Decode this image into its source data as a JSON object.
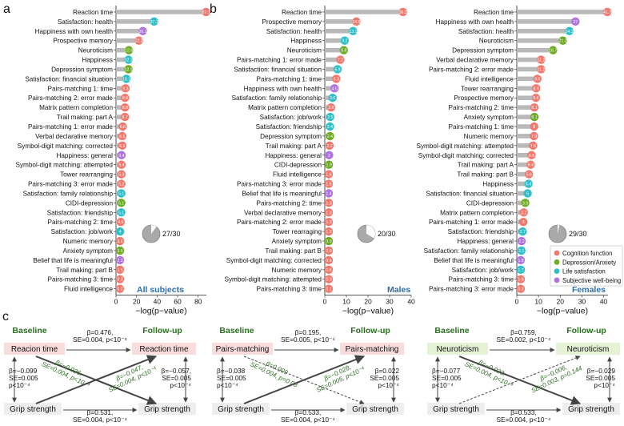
{
  "categories": [
    "Cognition function",
    "Depression/Anxiety",
    "Life satisfaction",
    "Subjective well-being"
  ],
  "colors": {
    "Cognition function": "#f0786c",
    "Depression/Anxiety": "#6cab22",
    "Life satisfaction": "#2ebfc9",
    "Subjective well-being": "#b072e0",
    "bar": "#b9b9b9",
    "title": "#2e6fae",
    "baseline_label": "#2a6e1f",
    "box_pink": "#fbdcdc",
    "box_green": "#e6f2d6",
    "box_gray": "#eeeeee",
    "crosslag": "#2a6e1f"
  },
  "chart_data": [
    {
      "type": "bar",
      "panel_label": "a",
      "title": "All subjects",
      "xlabel": "−log(p−value)",
      "xticks": [
        0,
        20,
        40,
        60,
        80
      ],
      "xlim": [
        0,
        88
      ],
      "pie_label": "27/30",
      "pie_fraction": 0.9,
      "rows": [
        {
          "label": "Reaction time",
          "value": 87.7,
          "text": "87.7",
          "cat": 0
        },
        {
          "label": "Satisfaction: health",
          "value": 37.1,
          "text": "37.1",
          "cat": 2
        },
        {
          "label": "Happiness with own health",
          "value": 26.1,
          "text": "26.1",
          "cat": 3
        },
        {
          "label": "Prospective memory",
          "value": 22.2,
          "text": "22.2",
          "cat": 0
        },
        {
          "label": "Neuroticism",
          "value": 12.6,
          "text": "12.6",
          "cat": 1
        },
        {
          "label": "Happiness",
          "value": 12.1,
          "text": "12.1",
          "cat": 2
        },
        {
          "label": "Depression symptom",
          "value": 12.1,
          "text": "12.1",
          "cat": 1
        },
        {
          "label": "Satisfaction: financial situation",
          "value": 10.1,
          "text": "10.1",
          "cat": 2
        },
        {
          "label": "Pairs-matching 1: time",
          "value": 9.3,
          "text": "9.3",
          "cat": 0
        },
        {
          "label": "Pairs-matching 2: error made",
          "value": 8.8,
          "text": "8.8",
          "cat": 0
        },
        {
          "label": "Matrix pattern completion",
          "value": 8.8,
          "text": "8.8",
          "cat": 0
        },
        {
          "label": "Trail making: part A",
          "value": 8.7,
          "text": "8.7",
          "cat": 0
        },
        {
          "label": "Pairs-matching 1: error made",
          "value": 6.6,
          "text": "6.6",
          "cat": 0
        },
        {
          "label": "Verbal declarative memory",
          "value": 6.1,
          "text": "6.1",
          "cat": 0
        },
        {
          "label": "Symbol-digit matching: corrected",
          "value": 6.1,
          "text": "6.1",
          "cat": 0
        },
        {
          "label": "Happiness: general",
          "value": 5.4,
          "text": "5.4",
          "cat": 3
        },
        {
          "label": "Symbol-digit matching: attempted",
          "value": 5.4,
          "text": "5.4",
          "cat": 0
        },
        {
          "label": "Tower rearranging",
          "value": 5.3,
          "text": "5.3",
          "cat": 0
        },
        {
          "label": "Pairs-matching 3: error made",
          "value": 5.2,
          "text": "5.2",
          "cat": 0
        },
        {
          "label": "Satisfaction: family relationship",
          "value": 5.1,
          "text": "5.1",
          "cat": 2
        },
        {
          "label": "CIDI-depression",
          "value": 5.1,
          "text": "5.1",
          "cat": 1
        },
        {
          "label": "Satisfaction: friendship",
          "value": 5.1,
          "text": "5.1",
          "cat": 2
        },
        {
          "label": "Pairs-matching 2: time",
          "value": 4.6,
          "text": "4.6",
          "cat": 0
        },
        {
          "label": "Satisfaction: job/work",
          "value": 4.0,
          "text": "4",
          "cat": 2
        },
        {
          "label": "Numeric memory",
          "value": 3.6,
          "text": "3.6",
          "cat": 0
        },
        {
          "label": "Anxiety symptom",
          "value": 3.5,
          "text": "3.5",
          "cat": 1
        },
        {
          "label": "Belief that life is meaningful",
          "value": 2.3,
          "text": "2.3",
          "cat": 3
        },
        {
          "label": "Trail making: part B",
          "value": 1.5,
          "text": "1.5",
          "cat": 0
        },
        {
          "label": "Pairs-matching 3: time",
          "value": 0.3,
          "text": "0.3",
          "cat": 0
        },
        {
          "label": "Fluid intelligence",
          "value": 0.2,
          "text": "0.2",
          "cat": 0
        }
      ]
    },
    {
      "type": "bar",
      "panel_label": "b",
      "title": "Males",
      "xlabel": "−log(p−value)",
      "xticks": [
        0,
        10,
        20,
        30,
        40
      ],
      "xlim": [
        0,
        40
      ],
      "pie_label": "20/30",
      "pie_fraction": 0.667,
      "rows": [
        {
          "label": "Reaction time",
          "value": 36.2,
          "text": "36.2",
          "cat": 0
        },
        {
          "label": "Prospective memory",
          "value": 14.6,
          "text": "14.6",
          "cat": 0
        },
        {
          "label": "Satisfaction: health",
          "value": 13.1,
          "text": "13.1",
          "cat": 2
        },
        {
          "label": "Happiness",
          "value": 9.2,
          "text": "9.2",
          "cat": 2
        },
        {
          "label": "Neuroticism",
          "value": 8.8,
          "text": "8.8",
          "cat": 1
        },
        {
          "label": "Pairs-matching 1: error made",
          "value": 7.2,
          "text": "7.2",
          "cat": 0
        },
        {
          "label": "Satisfaction: financial situation",
          "value": 5.9,
          "text": "5.9",
          "cat": 2
        },
        {
          "label": "Pairs-matching 1: time",
          "value": 5.3,
          "text": "5.3",
          "cat": 0
        },
        {
          "label": "Happiness with own health",
          "value": 4.5,
          "text": "4.5",
          "cat": 3
        },
        {
          "label": "Satisfaction: family relationship",
          "value": 3.6,
          "text": "3.6",
          "cat": 2
        },
        {
          "label": "Matrix pattern completion",
          "value": 2.9,
          "text": "2.9",
          "cat": 0
        },
        {
          "label": "Satisfaction: job/work",
          "value": 2.5,
          "text": "2.5",
          "cat": 2
        },
        {
          "label": "Satisfaction: friendship",
          "value": 2.4,
          "text": "2.4",
          "cat": 2
        },
        {
          "label": "Depression symptom",
          "value": 2.4,
          "text": "2.4",
          "cat": 1
        },
        {
          "label": "Trail making: part A",
          "value": 2.2,
          "text": "2.2",
          "cat": 0
        },
        {
          "label": "Happiness: general",
          "value": 2.0,
          "text": "2",
          "cat": 3
        },
        {
          "label": "CIDI-depression",
          "value": 1.9,
          "text": "1.9",
          "cat": 1
        },
        {
          "label": "Fluid intelligence",
          "value": 1.6,
          "text": "1.6",
          "cat": 0
        },
        {
          "label": "Pairs-matching 3: error made",
          "value": 1.5,
          "text": "1.5",
          "cat": 0
        },
        {
          "label": "Belief that life is meaningful",
          "value": 1.4,
          "text": "1.4",
          "cat": 3
        },
        {
          "label": "Pairs-matching 2: time",
          "value": 1.3,
          "text": "1.3",
          "cat": 0
        },
        {
          "label": "Verbal declarative memory",
          "value": 1.3,
          "text": "1.3",
          "cat": 0
        },
        {
          "label": "Pairs-matching 2: error made",
          "value": 1.3,
          "text": "1.3",
          "cat": 0
        },
        {
          "label": "Tower rearraging",
          "value": 1.2,
          "text": "1.2",
          "cat": 0
        },
        {
          "label": "Anxiety symptom",
          "value": 0.9,
          "text": "0.9",
          "cat": 1
        },
        {
          "label": "Trail making: part B",
          "value": 0.9,
          "text": "0.9",
          "cat": 0
        },
        {
          "label": "Symbol-digit matching: corrected",
          "value": 0.6,
          "text": "0.6",
          "cat": 0
        },
        {
          "label": "Numeric memory",
          "value": 0.6,
          "text": "0.6",
          "cat": 0
        },
        {
          "label": "Symbol-digit matching: attempted",
          "value": 0.3,
          "text": "0.3",
          "cat": 0
        },
        {
          "label": "Pairs-matching 3: time",
          "value": 0.1,
          "text": "0.1",
          "cat": 0
        }
      ]
    },
    {
      "type": "bar",
      "panel_label": "",
      "title": "Females",
      "xlabel": "−log(p−value)",
      "xticks": [
        0,
        10,
        20,
        30,
        40
      ],
      "xlim": [
        0,
        42
      ],
      "pie_label": "29/30",
      "pie_fraction": 0.967,
      "rows": [
        {
          "label": "Reaction time",
          "value": 41.7,
          "text": "41.7",
          "cat": 0
        },
        {
          "label": "Happiness with own health",
          "value": 27.0,
          "text": "27",
          "cat": 3
        },
        {
          "label": "Satisfaction: health",
          "value": 24.2,
          "text": "24.2",
          "cat": 2
        },
        {
          "label": "Neuroticism",
          "value": 21.2,
          "text": "21.2",
          "cat": 1
        },
        {
          "label": "Depression symptom",
          "value": 16.7,
          "text": "16.7",
          "cat": 1
        },
        {
          "label": "Verbal declarative memory",
          "value": 11.2,
          "text": "11.2",
          "cat": 0
        },
        {
          "label": "Pairs-matching 2: error made",
          "value": 11.2,
          "text": "11.2",
          "cat": 0
        },
        {
          "label": "Fluid intelligence",
          "value": 9.5,
          "text": "9.5",
          "cat": 0
        },
        {
          "label": "Tower rearranging",
          "value": 8.9,
          "text": "8.9",
          "cat": 0
        },
        {
          "label": "Prospective memory",
          "value": 8.8,
          "text": "8.8",
          "cat": 0
        },
        {
          "label": "Pairs-matching 2: time",
          "value": 8.1,
          "text": "8.1",
          "cat": 0
        },
        {
          "label": "Anxiety symptom",
          "value": 8.1,
          "text": "8.1",
          "cat": 1
        },
        {
          "label": "Pairs-matching 1: time",
          "value": 8.0,
          "text": "8",
          "cat": 0
        },
        {
          "label": "Numeric memory",
          "value": 7.9,
          "text": "7.9",
          "cat": 0
        },
        {
          "label": "Symbol-digit matching: attempted",
          "value": 7.5,
          "text": "7.5",
          "cat": 0
        },
        {
          "label": "Symbol-digit matching: corrected",
          "value": 6.8,
          "text": "6.8",
          "cat": 0
        },
        {
          "label": "Trail making: part A",
          "value": 6.4,
          "text": "6.4",
          "cat": 0
        },
        {
          "label": "Trail making: part B",
          "value": 5.6,
          "text": "5.6",
          "cat": 0
        },
        {
          "label": "Happiness",
          "value": 5.4,
          "text": "5.4",
          "cat": 2
        },
        {
          "label": "Satisfaction: financial situation",
          "value": 5.0,
          "text": "5",
          "cat": 2
        },
        {
          "label": "CIDI-depression",
          "value": 3.9,
          "text": "3.9",
          "cat": 1
        },
        {
          "label": "Matrix pattern completion",
          "value": 3.2,
          "text": "3.2",
          "cat": 0
        },
        {
          "label": "Pairs-matching 1: error made",
          "value": 3.0,
          "text": "3",
          "cat": 0
        },
        {
          "label": "Satisfaction: friendship",
          "value": 2.7,
          "text": "2.7",
          "cat": 2
        },
        {
          "label": "Happiness: general",
          "value": 2.2,
          "text": "2.2",
          "cat": 3
        },
        {
          "label": "Satisfaction: family relationship",
          "value": 2.1,
          "text": "2.1",
          "cat": 2
        },
        {
          "label": "Belief that life is meaningful",
          "value": 1.8,
          "text": "1.8",
          "cat": 3
        },
        {
          "label": "Satisfaction: job/work",
          "value": 1.7,
          "text": "1.7",
          "cat": 2
        },
        {
          "label": "Pairs-matching 3: time",
          "value": 1.6,
          "text": "1.6",
          "cat": 0
        },
        {
          "label": "Pairs-matching 3: error made",
          "value": 0.3,
          "text": "0.3",
          "cat": 0
        }
      ]
    }
  ],
  "panel_c": {
    "label": "c",
    "baseline": "Baseline",
    "followup": "Follow-up",
    "models": [
      {
        "baseline_var": "Reacion time",
        "followup_var": "Reaction time",
        "grip": "Grip strength",
        "top": "β=0.476,\nSE=0.004, p<10⁻⁴",
        "bottom": "β=0.531,\nSE=0.004, p<10⁻⁴",
        "left": "β=−0.099\nSE=0.005\np<10⁻⁴",
        "right": "β=−0.057,\nSE=0.005\np<10⁻⁴",
        "cross_a": "β=−0.026,\nSE=0.004, p<10⁻⁴",
        "cross_b": "β=−0.047,\nSE=0.004, p<10⁻⁴",
        "box": "pink"
      },
      {
        "baseline_var": "Pairs-matching",
        "followup_var": "Pairs-matching",
        "grip": "Grip strength",
        "top": "β=0.195,\nSE=0.005, p<10⁻⁴",
        "bottom": "β=0.533,\nSE=0.004, p<10⁻⁴",
        "left": "β=−0.038\nSE=0.005\np<10⁻⁴",
        "right": "β=0.022\nSE=0.005\np<10⁻⁴",
        "cross_a": "β=0.009\nSE=0.004, p=0.08",
        "cross_b": "β=−0.028,\nSE=0.005, p<10⁻⁴",
        "box": "pink"
      },
      {
        "baseline_var": "Neuroticism",
        "followup_var": "Neuroticism",
        "grip": "Grip strength",
        "top": "β=0.759,\nSE=0.002, p<10⁻⁴",
        "bottom": "β=0.533,\nSE=0.004, p<10⁻⁴",
        "left": "β=−0.077\nSE=0.005\np<10⁻⁴",
        "right": "β=−0.029\nSE=0.005\np<10⁻⁴",
        "cross_a": "β=−0.023,\nSE=0.004, p<10⁻⁴",
        "cross_b": "β=−0.006,\nSE=0.003, p=0.144",
        "box": "green"
      }
    ]
  }
}
